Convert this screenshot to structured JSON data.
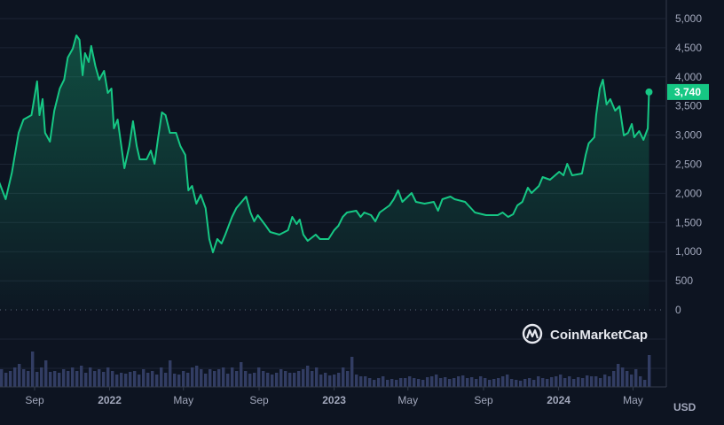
{
  "chart_data": {
    "type": "area",
    "title": "",
    "xlabel": "",
    "ylabel": "",
    "unit_label": "USD",
    "ylim": [
      0,
      5000
    ],
    "yticks": [
      0,
      500,
      1000,
      1500,
      2000,
      2500,
      3000,
      3500,
      4000,
      4500,
      5000
    ],
    "ytick_labels": [
      "0",
      "500",
      "1,000",
      "1,500",
      "2,000",
      "2,500",
      "3,000",
      "3,500",
      "4,000",
      "4,500",
      "5,000"
    ],
    "xticks": [
      {
        "date": "2021-09-01",
        "label": "Sep",
        "year": false
      },
      {
        "date": "2022-01-01",
        "label": "2022",
        "year": true
      },
      {
        "date": "2022-05-01",
        "label": "May",
        "year": false
      },
      {
        "date": "2022-09-01",
        "label": "Sep",
        "year": false
      },
      {
        "date": "2023-01-01",
        "label": "2023",
        "year": true
      },
      {
        "date": "2023-05-01",
        "label": "May",
        "year": false
      },
      {
        "date": "2023-09-01",
        "label": "Sep",
        "year": false
      },
      {
        "date": "2024-01-01",
        "label": "2024",
        "year": true
      },
      {
        "date": "2024-05-01",
        "label": "May",
        "year": false
      }
    ],
    "xlim": [
      "2021-07-01",
      "2024-05-29"
    ],
    "grid": true,
    "current_price_label": "3,740",
    "current_price": 3740,
    "colors": {
      "line": "#16c784",
      "background": "#0d1421",
      "grid": "#1d2535",
      "volume": "#323d63",
      "badge": "#16c784"
    },
    "series": [
      {
        "values": [
          [
            "2021-07-05",
            2204
          ],
          [
            "2021-07-16",
            1900
          ],
          [
            "2021-07-26",
            2356
          ],
          [
            "2021-08-06",
            3040
          ],
          [
            "2021-08-14",
            3268
          ],
          [
            "2021-08-27",
            3344
          ],
          [
            "2021-09-05",
            3922
          ],
          [
            "2021-09-09",
            3344
          ],
          [
            "2021-09-14",
            3618
          ],
          [
            "2021-09-18",
            3040
          ],
          [
            "2021-09-26",
            2888
          ],
          [
            "2021-10-03",
            3420
          ],
          [
            "2021-10-12",
            3800
          ],
          [
            "2021-10-19",
            3952
          ],
          [
            "2021-10-25",
            4332
          ],
          [
            "2021-11-02",
            4484
          ],
          [
            "2021-11-08",
            4712
          ],
          [
            "2021-11-13",
            4636
          ],
          [
            "2021-11-18",
            4028
          ],
          [
            "2021-11-22",
            4408
          ],
          [
            "2021-11-28",
            4256
          ],
          [
            "2021-12-02",
            4530
          ],
          [
            "2021-12-09",
            4180
          ],
          [
            "2021-12-15",
            3952
          ],
          [
            "2021-12-23",
            4104
          ],
          [
            "2021-12-29",
            3724
          ],
          [
            "2022-01-04",
            3800
          ],
          [
            "2022-01-08",
            3116
          ],
          [
            "2022-01-14",
            3268
          ],
          [
            "2022-01-25",
            2432
          ],
          [
            "2022-02-02",
            2812
          ],
          [
            "2022-02-08",
            3238
          ],
          [
            "2022-02-14",
            2812
          ],
          [
            "2022-02-19",
            2584
          ],
          [
            "2022-03-02",
            2584
          ],
          [
            "2022-03-09",
            2736
          ],
          [
            "2022-03-15",
            2508
          ],
          [
            "2022-03-21",
            2964
          ],
          [
            "2022-03-27",
            3390
          ],
          [
            "2022-04-02",
            3344
          ],
          [
            "2022-04-09",
            3040
          ],
          [
            "2022-04-19",
            3040
          ],
          [
            "2022-04-26",
            2812
          ],
          [
            "2022-05-04",
            2660
          ],
          [
            "2022-05-09",
            2052
          ],
          [
            "2022-05-15",
            2128
          ],
          [
            "2022-05-22",
            1824
          ],
          [
            "2022-05-29",
            1976
          ],
          [
            "2022-06-06",
            1748
          ],
          [
            "2022-06-12",
            1216
          ],
          [
            "2022-06-18",
            988
          ],
          [
            "2022-06-25",
            1216
          ],
          [
            "2022-07-02",
            1140
          ],
          [
            "2022-07-08",
            1292
          ],
          [
            "2022-07-19",
            1596
          ],
          [
            "2022-07-26",
            1748
          ],
          [
            "2022-08-11",
            1946
          ],
          [
            "2022-08-18",
            1672
          ],
          [
            "2022-08-24",
            1520
          ],
          [
            "2022-08-30",
            1626
          ],
          [
            "2022-09-12",
            1444
          ],
          [
            "2022-09-19",
            1338
          ],
          [
            "2022-10-04",
            1292
          ],
          [
            "2022-10-18",
            1368
          ],
          [
            "2022-10-25",
            1596
          ],
          [
            "2022-11-01",
            1474
          ],
          [
            "2022-11-06",
            1550
          ],
          [
            "2022-11-12",
            1292
          ],
          [
            "2022-11-19",
            1186
          ],
          [
            "2022-12-02",
            1292
          ],
          [
            "2022-12-09",
            1216
          ],
          [
            "2022-12-23",
            1216
          ],
          [
            "2023-01-01",
            1368
          ],
          [
            "2023-01-08",
            1444
          ],
          [
            "2023-01-15",
            1596
          ],
          [
            "2023-01-22",
            1672
          ],
          [
            "2023-02-06",
            1702
          ],
          [
            "2023-02-13",
            1596
          ],
          [
            "2023-02-19",
            1672
          ],
          [
            "2023-03-02",
            1626
          ],
          [
            "2023-03-09",
            1520
          ],
          [
            "2023-03-16",
            1672
          ],
          [
            "2023-04-01",
            1794
          ],
          [
            "2023-04-08",
            1900
          ],
          [
            "2023-04-15",
            2052
          ],
          [
            "2023-04-22",
            1854
          ],
          [
            "2023-05-07",
            2006
          ],
          [
            "2023-05-14",
            1854
          ],
          [
            "2023-05-28",
            1824
          ],
          [
            "2023-06-12",
            1854
          ],
          [
            "2023-06-19",
            1702
          ],
          [
            "2023-06-26",
            1900
          ],
          [
            "2023-07-09",
            1946
          ],
          [
            "2023-07-16",
            1900
          ],
          [
            "2023-08-02",
            1854
          ],
          [
            "2023-08-18",
            1672
          ],
          [
            "2023-09-05",
            1626
          ],
          [
            "2023-09-24",
            1626
          ],
          [
            "2023-10-02",
            1672
          ],
          [
            "2023-10-11",
            1596
          ],
          [
            "2023-10-19",
            1642
          ],
          [
            "2023-10-26",
            1794
          ],
          [
            "2023-11-03",
            1854
          ],
          [
            "2023-11-12",
            2098
          ],
          [
            "2023-11-18",
            2006
          ],
          [
            "2023-11-30",
            2128
          ],
          [
            "2023-12-06",
            2280
          ],
          [
            "2023-12-18",
            2234
          ],
          [
            "2024-01-02",
            2371
          ],
          [
            "2024-01-09",
            2310
          ],
          [
            "2024-01-15",
            2508
          ],
          [
            "2024-01-23",
            2310
          ],
          [
            "2024-02-08",
            2341
          ],
          [
            "2024-02-14",
            2660
          ],
          [
            "2024-02-19",
            2858
          ],
          [
            "2024-02-28",
            2964
          ],
          [
            "2024-03-02",
            3344
          ],
          [
            "2024-03-08",
            3800
          ],
          [
            "2024-03-13",
            3952
          ],
          [
            "2024-03-19",
            3526
          ],
          [
            "2024-03-25",
            3618
          ],
          [
            "2024-04-02",
            3420
          ],
          [
            "2024-04-09",
            3496
          ],
          [
            "2024-04-16",
            2994
          ],
          [
            "2024-04-23",
            3040
          ],
          [
            "2024-04-29",
            3192
          ],
          [
            "2024-05-03",
            2964
          ],
          [
            "2024-05-11",
            3070
          ],
          [
            "2024-05-18",
            2918
          ],
          [
            "2024-05-25",
            3116
          ],
          [
            "2024-05-27",
            3740
          ]
        ]
      }
    ],
    "volume": [
      20,
      16,
      18,
      22,
      26,
      20,
      18,
      40,
      17,
      22,
      30,
      17,
      18,
      16,
      20,
      18,
      22,
      18,
      24,
      16,
      22,
      18,
      20,
      17,
      22,
      18,
      14,
      16,
      15,
      17,
      18,
      14,
      20,
      16,
      18,
      14,
      22,
      16,
      30,
      15,
      14,
      18,
      16,
      22,
      24,
      20,
      15,
      20,
      18,
      20,
      22,
      15,
      22,
      18,
      28,
      18,
      15,
      16,
      22,
      18,
      16,
      14,
      16,
      20,
      18,
      16,
      16,
      18,
      20,
      24,
      18,
      22,
      14,
      16,
      13,
      14,
      16,
      22,
      18,
      34,
      14,
      12,
      12,
      10,
      8,
      10,
      12,
      8,
      9,
      8,
      10,
      10,
      12,
      10,
      9,
      8,
      11,
      12,
      14,
      10,
      11,
      9,
      10,
      12,
      13,
      10,
      11,
      9,
      12,
      10,
      8,
      9,
      10,
      12,
      14,
      9,
      8,
      7,
      9,
      10,
      8,
      12,
      10,
      9,
      11,
      12,
      14,
      10,
      12,
      9,
      11,
      10,
      13,
      12,
      12,
      10,
      14,
      12,
      18,
      26,
      22,
      18,
      14,
      20,
      12,
      8,
      36
    ]
  },
  "watermark": {
    "text": "CoinMarketCap"
  }
}
